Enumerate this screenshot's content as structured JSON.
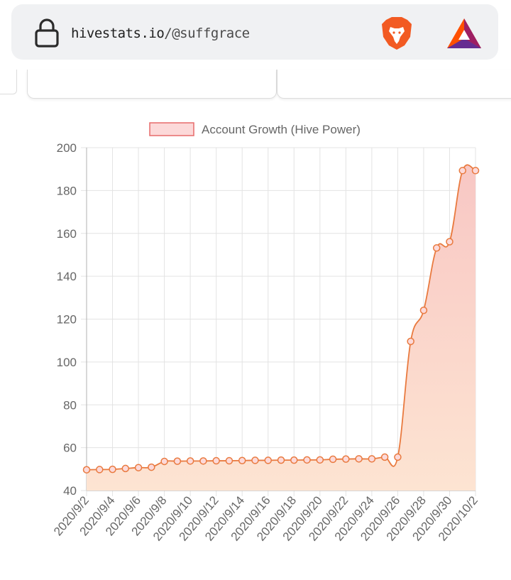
{
  "browser": {
    "url_host": "hivestats.io",
    "url_path": "/@suffgrace",
    "icons": [
      "lock-icon",
      "brave-lion-icon",
      "bat-triangle-icon"
    ]
  },
  "colors": {
    "line": "#e97a3f",
    "fill_top": "#f8c7c4",
    "fill_bottom": "#fde4d2",
    "legend_fill": "#fcd9d9",
    "legend_border": "#e76b6b",
    "grid": "#e3e3e3",
    "text": "#666666"
  },
  "chart_data": {
    "type": "area",
    "title": "",
    "legend": {
      "position": "top",
      "entries": [
        "Account Growth (Hive Power)"
      ]
    },
    "ylim": [
      40,
      200
    ],
    "yticks": [
      40,
      60,
      80,
      100,
      120,
      140,
      160,
      180,
      200
    ],
    "grid": true,
    "xtick_labels": [
      "2020/9/2",
      "2020/9/4",
      "2020/9/6",
      "2020/9/8",
      "2020/9/10",
      "2020/9/12",
      "2020/9/14",
      "2020/9/16",
      "2020/9/18",
      "2020/9/20",
      "2020/9/22",
      "2020/9/24",
      "2020/9/26",
      "2020/9/28",
      "2020/9/30",
      "2020/10/2"
    ],
    "x": [
      "2020/9/2",
      "2020/9/3",
      "2020/9/4",
      "2020/9/5",
      "2020/9/6",
      "2020/9/7",
      "2020/9/8",
      "2020/9/9",
      "2020/9/10",
      "2020/9/11",
      "2020/9/12",
      "2020/9/13",
      "2020/9/14",
      "2020/9/15",
      "2020/9/16",
      "2020/9/17",
      "2020/9/18",
      "2020/9/19",
      "2020/9/20",
      "2020/9/21",
      "2020/9/22",
      "2020/9/23",
      "2020/9/24",
      "2020/9/25",
      "2020/9/26",
      "2020/9/27",
      "2020/9/28",
      "2020/9/29",
      "2020/9/30",
      "2020/10/1",
      "2020/10/2"
    ],
    "series": [
      {
        "name": "Account Growth (Hive Power)",
        "values": [
          49.7,
          49.8,
          49.9,
          50.3,
          50.7,
          50.9,
          53.6,
          53.7,
          53.8,
          53.8,
          53.9,
          53.9,
          54.0,
          54.1,
          54.1,
          54.2,
          54.2,
          54.3,
          54.3,
          54.6,
          54.7,
          54.8,
          54.8,
          55.6,
          55.6,
          109.6,
          124.1,
          153.2,
          156.1,
          189.3,
          189.3
        ]
      }
    ]
  }
}
